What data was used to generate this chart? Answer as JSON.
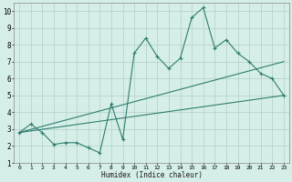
{
  "xlabel": "Humidex (Indice chaleur)",
  "ylabel": "",
  "bg_color": "#d6eee8",
  "grid_color": "#b0cfc8",
  "line_color": "#2e7d6e",
  "xlim": [
    -0.5,
    23.5
  ],
  "ylim": [
    1,
    10.5
  ],
  "xticks": [
    0,
    1,
    2,
    3,
    4,
    5,
    6,
    7,
    8,
    9,
    10,
    11,
    12,
    13,
    14,
    15,
    16,
    17,
    18,
    19,
    20,
    21,
    22,
    23
  ],
  "yticks": [
    1,
    2,
    3,
    4,
    5,
    6,
    7,
    8,
    9,
    10
  ],
  "zigzag_x": [
    0,
    1,
    2,
    3,
    4,
    5,
    6,
    7,
    8,
    9,
    10,
    11,
    12,
    13,
    14,
    15,
    16,
    17,
    18,
    19,
    20,
    21,
    22,
    23
  ],
  "zigzag_y": [
    2.8,
    3.3,
    2.8,
    2.1,
    2.2,
    2.2,
    1.9,
    1.6,
    4.5,
    2.4,
    7.5,
    8.4,
    7.3,
    6.6,
    7.2,
    9.6,
    10.2,
    7.8,
    8.3,
    7.5,
    7.0,
    6.3,
    6.0,
    5.0
  ],
  "line1_x": [
    0,
    23
  ],
  "line1_y": [
    2.8,
    7.0
  ],
  "line2_x": [
    0,
    23
  ],
  "line2_y": [
    2.8,
    5.0
  ]
}
